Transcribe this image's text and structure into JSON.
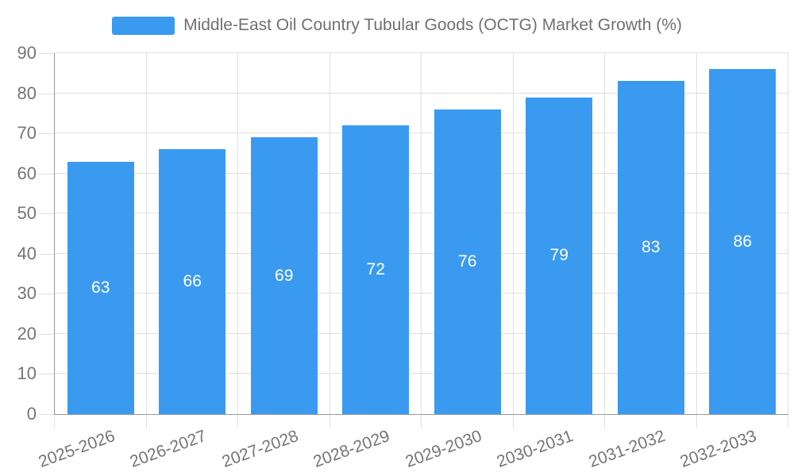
{
  "chart_data": {
    "type": "bar",
    "title": "Middle-East Oil Country Tubular Goods (OCTG) Market Growth (%)",
    "categories": [
      "2025-2026",
      "2026-2027",
      "2027-2028",
      "2028-2029",
      "2029-2030",
      "2030-2031",
      "2031-2032",
      "2032-2033"
    ],
    "values": [
      63,
      66,
      69,
      72,
      76,
      79,
      83,
      86
    ],
    "xlabel": "",
    "ylabel": "",
    "ylim": [
      0,
      90
    ],
    "yticks": [
      0,
      10,
      20,
      30,
      40,
      50,
      60,
      70,
      80,
      90
    ],
    "grid": true,
    "legend_position": "top",
    "bar_labels_visible": true
  },
  "colors": {
    "bar": "#3a9af0",
    "bar_label": "#ffffff",
    "gridline": "#e0e0e0",
    "axis_line": "#999999",
    "tick_text": "#757575",
    "title_text": "#707070",
    "background": "#ffffff"
  }
}
